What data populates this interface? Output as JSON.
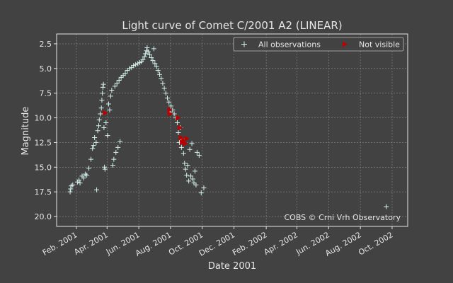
{
  "chart_data": {
    "type": "scatter",
    "title": "Light curve of Comet C/2001 A2 (LINEAR)",
    "xlabel": "Date 2001",
    "ylabel": "Magnitude",
    "y_inverted": true,
    "xlim": [
      "2000-12-25",
      "2002-10-31"
    ],
    "ylim": [
      21.0,
      1.5
    ],
    "grid": true,
    "watermark": "COBS © Crni Vrh Observatory",
    "x_ticks": [
      {
        "date": "2001-02-01",
        "label": "Feb. 2001"
      },
      {
        "date": "2001-04-01",
        "label": "Apr. 2001"
      },
      {
        "date": "2001-06-01",
        "label": "Jun. 2001"
      },
      {
        "date": "2001-08-01",
        "label": "Aug. 2001"
      },
      {
        "date": "2001-10-01",
        "label": "Oct. 2001"
      },
      {
        "date": "2001-12-01",
        "label": "Dec. 2001"
      },
      {
        "date": "2002-02-01",
        "label": "Feb. 2002"
      },
      {
        "date": "2002-04-01",
        "label": "Apr. 2002"
      },
      {
        "date": "2002-06-01",
        "label": "Jun. 2002"
      },
      {
        "date": "2002-08-01",
        "label": "Aug. 2002"
      },
      {
        "date": "2002-10-01",
        "label": "Oct. 2002"
      }
    ],
    "y_ticks": [
      {
        "value": 2.5,
        "label": "2.5"
      },
      {
        "value": 5.0,
        "label": "5.0"
      },
      {
        "value": 7.5,
        "label": "7.5"
      },
      {
        "value": 10.0,
        "label": "10.0"
      },
      {
        "value": 12.5,
        "label": "12.5"
      },
      {
        "value": 15.0,
        "label": "15.0"
      },
      {
        "value": 17.5,
        "label": "17.5"
      },
      {
        "value": 20.0,
        "label": "20.0"
      }
    ],
    "legend": {
      "placement": "top-right",
      "entries": [
        {
          "label": "All observations",
          "marker": "+",
          "color": "#d4f1ec"
        },
        {
          "label": "Not visible",
          "marker": "triangle-right",
          "color": "#c00000"
        }
      ]
    },
    "series": [
      {
        "name": "All observations",
        "marker": "+",
        "color": "#d4f1ec",
        "points": [
          [
            "2001-01-20",
            17.5
          ],
          [
            "2001-01-22",
            16.9
          ],
          [
            "2001-01-21",
            17.2
          ],
          [
            "2001-01-25",
            16.8
          ],
          [
            "2001-02-03",
            16.5
          ],
          [
            "2001-02-06",
            16.3
          ],
          [
            "2001-02-08",
            16.6
          ],
          [
            "2001-02-12",
            15.9
          ],
          [
            "2001-02-15",
            16.1
          ],
          [
            "2001-02-18",
            15.7
          ],
          [
            "2001-02-21",
            15.8
          ],
          [
            "2001-02-25",
            15.1
          ],
          [
            "2001-03-01",
            14.2
          ],
          [
            "2001-03-04",
            13.1
          ],
          [
            "2001-03-06",
            12.8
          ],
          [
            "2001-03-08",
            12.0
          ],
          [
            "2001-03-11",
            12.5
          ],
          [
            "2001-03-12",
            17.3
          ],
          [
            "2001-03-14",
            11.3
          ],
          [
            "2001-03-16",
            10.8
          ],
          [
            "2001-03-17",
            10.2
          ],
          [
            "2001-03-19",
            9.6
          ],
          [
            "2001-03-21",
            9.0
          ],
          [
            "2001-03-22",
            8.2
          ],
          [
            "2001-03-23",
            7.5
          ],
          [
            "2001-03-24",
            6.9
          ],
          [
            "2001-03-25",
            6.6
          ],
          [
            "2001-03-26",
            11.0
          ],
          [
            "2001-03-27",
            15.0
          ],
          [
            "2001-03-28",
            15.2
          ],
          [
            "2001-03-30",
            10.5
          ],
          [
            "2001-04-02",
            11.8
          ],
          [
            "2001-04-04",
            8.6
          ],
          [
            "2001-04-06",
            9.2
          ],
          [
            "2001-04-08",
            7.8
          ],
          [
            "2001-04-10",
            7.2
          ],
          [
            "2001-04-12",
            14.8
          ],
          [
            "2001-04-14",
            14.2
          ],
          [
            "2001-04-16",
            6.8
          ],
          [
            "2001-04-18",
            13.5
          ],
          [
            "2001-04-20",
            6.5
          ],
          [
            "2001-04-22",
            13.0
          ],
          [
            "2001-04-24",
            6.2
          ],
          [
            "2001-04-26",
            12.4
          ],
          [
            "2001-04-28",
            5.9
          ],
          [
            "2001-05-02",
            5.7
          ],
          [
            "2001-05-06",
            5.5
          ],
          [
            "2001-05-10",
            5.2
          ],
          [
            "2001-05-14",
            5.0
          ],
          [
            "2001-05-18",
            4.9
          ],
          [
            "2001-05-22",
            4.7
          ],
          [
            "2001-05-26",
            4.6
          ],
          [
            "2001-05-30",
            4.5
          ],
          [
            "2001-06-03",
            4.4
          ],
          [
            "2001-06-06",
            4.3
          ],
          [
            "2001-06-09",
            4.1
          ],
          [
            "2001-06-12",
            3.8
          ],
          [
            "2001-06-14",
            3.5
          ],
          [
            "2001-06-16",
            3.2
          ],
          [
            "2001-06-17",
            2.9
          ],
          [
            "2001-06-19",
            3.3
          ],
          [
            "2001-06-22",
            3.6
          ],
          [
            "2001-06-25",
            3.9
          ],
          [
            "2001-06-28",
            4.2
          ],
          [
            "2001-06-30",
            3.0
          ],
          [
            "2001-07-02",
            4.5
          ],
          [
            "2001-07-05",
            4.8
          ],
          [
            "2001-07-08",
            5.2
          ],
          [
            "2001-07-11",
            5.6
          ],
          [
            "2001-07-14",
            6.0
          ],
          [
            "2001-07-17",
            6.5
          ],
          [
            "2001-07-20",
            7.0
          ],
          [
            "2001-07-23",
            7.5
          ],
          [
            "2001-07-26",
            8.0
          ],
          [
            "2001-07-29",
            8.4
          ],
          [
            "2001-07-31",
            9.4
          ],
          [
            "2001-08-02",
            8.8
          ],
          [
            "2001-08-05",
            9.2
          ],
          [
            "2001-08-08",
            9.6
          ],
          [
            "2001-08-11",
            10.0
          ],
          [
            "2001-08-14",
            10.5
          ],
          [
            "2001-08-16",
            11.5
          ],
          [
            "2001-08-18",
            12.5
          ],
          [
            "2001-08-20",
            11.0
          ],
          [
            "2001-08-22",
            13.0
          ],
          [
            "2001-08-24",
            12.2
          ],
          [
            "2001-08-26",
            13.6
          ],
          [
            "2001-08-28",
            14.6
          ],
          [
            "2001-08-30",
            15.2
          ],
          [
            "2001-09-01",
            15.8
          ],
          [
            "2001-09-03",
            14.8
          ],
          [
            "2001-09-05",
            16.4
          ],
          [
            "2001-09-07",
            13.2
          ],
          [
            "2001-09-09",
            15.9
          ],
          [
            "2001-09-11",
            12.6
          ],
          [
            "2001-09-13",
            16.2
          ],
          [
            "2001-09-15",
            16.6
          ],
          [
            "2001-09-17",
            15.4
          ],
          [
            "2001-09-19",
            16.8
          ],
          [
            "2001-09-21",
            13.5
          ],
          [
            "2001-09-25",
            13.8
          ],
          [
            "2001-09-29",
            17.6
          ],
          [
            "2001-10-04",
            17.1
          ],
          [
            "2002-09-20",
            19.0
          ]
        ]
      },
      {
        "name": "Not visible",
        "marker": "triangle-right",
        "color": "#c00000",
        "points": [
          [
            "2001-03-28",
            9.5
          ],
          [
            "2001-07-30",
            9.2
          ],
          [
            "2001-07-31",
            9.6
          ],
          [
            "2001-08-15",
            10.0
          ],
          [
            "2001-08-19",
            11.0
          ],
          [
            "2001-08-21",
            12.0
          ],
          [
            "2001-08-23",
            12.5
          ],
          [
            "2001-08-26",
            12.3
          ],
          [
            "2001-08-29",
            12.6
          ],
          [
            "2001-09-01",
            12.1
          ]
        ]
      }
    ]
  }
}
